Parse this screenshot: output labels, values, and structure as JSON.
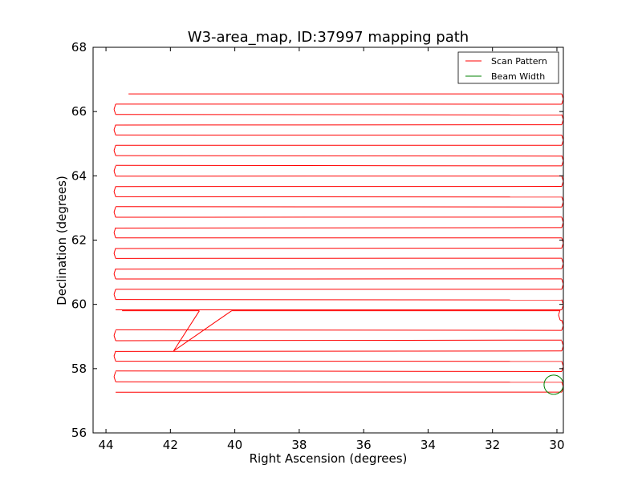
{
  "chart_data": {
    "type": "line",
    "title": "W3-area_map, ID:37997 mapping path",
    "xlabel": "Right Ascension (degrees)",
    "ylabel": "Declination (degrees)",
    "xlim": [
      44.4,
      29.8
    ],
    "ylim": [
      56,
      68
    ],
    "xticks": [
      44,
      42,
      40,
      38,
      36,
      34,
      32,
      30
    ],
    "yticks": [
      56,
      58,
      60,
      62,
      64,
      66,
      68
    ],
    "grid": false,
    "legend_position": "top-right",
    "colors": {
      "scan": "#ff0000",
      "beam": "#008000"
    },
    "series": [
      {
        "name": "Scan Pattern",
        "color": "#ff0000",
        "raster": {
          "dec_start": 66.55,
          "dec_end": 57.15,
          "row_spacing": 0.32,
          "ra_east": 43.7,
          "ra_west": 29.85,
          "ra_start": 43.3
        },
        "excursion": [
          [
            43.5,
            59.8
          ],
          [
            41.1,
            59.8
          ],
          [
            41.9,
            58.55
          ],
          [
            40.1,
            59.8
          ],
          [
            29.9,
            59.8
          ]
        ]
      },
      {
        "name": "Beam Width",
        "color": "#008000",
        "circle": {
          "ra": 30.1,
          "dec": 57.5,
          "radius_deg": 0.3
        }
      }
    ]
  }
}
